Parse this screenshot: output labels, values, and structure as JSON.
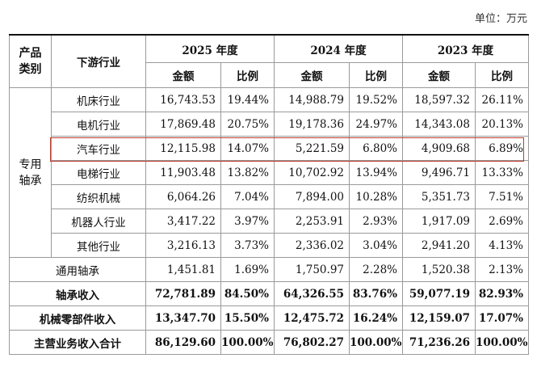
{
  "unit_label": "单位：万元",
  "header": {
    "category": "产品\n类别",
    "industry": "下游行业",
    "years": [
      "2025 年度",
      "2024 年度",
      "2023 年度"
    ],
    "amount": "金额",
    "ratio": "比例"
  },
  "special_group": "专用\n轴承",
  "rows": [
    {
      "name": "机床行业",
      "v": [
        "16,743.53",
        "19.44%",
        "14,988.79",
        "19.52%",
        "18,597.32",
        "26.11%"
      ]
    },
    {
      "name": "电机行业",
      "v": [
        "17,869.48",
        "20.75%",
        "19,178.36",
        "24.97%",
        "14,343.08",
        "20.13%"
      ]
    },
    {
      "name": "汽车行业",
      "v": [
        "12,115.98",
        "14.07%",
        "5,221.59",
        "6.80%",
        "4,909.68",
        "6.89%"
      ]
    },
    {
      "name": "电梯行业",
      "v": [
        "11,903.48",
        "13.82%",
        "10,702.92",
        "13.94%",
        "9,496.71",
        "13.33%"
      ]
    },
    {
      "name": "纺织机械",
      "v": [
        "6,064.26",
        "7.04%",
        "7,894.00",
        "10.28%",
        "5,351.73",
        "7.51%"
      ]
    },
    {
      "name": "机器人行业",
      "v": [
        "3,417.22",
        "3.97%",
        "2,253.91",
        "2.93%",
        "1,917.09",
        "2.69%"
      ]
    },
    {
      "name": "其他行业",
      "v": [
        "3,216.13",
        "3.73%",
        "2,336.02",
        "3.04%",
        "2,941.20",
        "4.13%"
      ]
    }
  ],
  "general": {
    "name": "通用轴承",
    "v": [
      "1,451.81",
      "1.69%",
      "1,750.97",
      "2.28%",
      "1,520.38",
      "2.13%"
    ]
  },
  "bearing_income": {
    "name": "轴承收入",
    "v": [
      "72,781.89",
      "84.50%",
      "64,326.55",
      "83.76%",
      "59,077.19",
      "82.93%"
    ]
  },
  "parts_income": {
    "name": "机械零部件收入",
    "v": [
      "13,347.70",
      "15.50%",
      "12,475.72",
      "16.24%",
      "12,159.07",
      "17.07%"
    ]
  },
  "total": {
    "name": "主营业务收入合计",
    "v": [
      "86,129.60",
      "100.00%",
      "76,802.27",
      "100.00%",
      "71,236.26",
      "100.00%"
    ]
  }
}
